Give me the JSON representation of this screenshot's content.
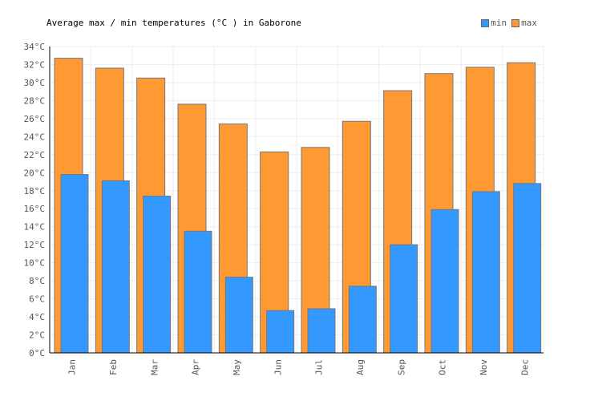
{
  "chart_data": {
    "type": "bar",
    "title": "Average max / min temperatures (°C ) in Gaborone",
    "categories": [
      "Jan",
      "Feb",
      "Mar",
      "Apr",
      "May",
      "Jun",
      "Jul",
      "Aug",
      "Sep",
      "Oct",
      "Nov",
      "Dec"
    ],
    "series": [
      {
        "name": "min",
        "color": "#3399ff",
        "values": [
          19.8,
          19.1,
          17.4,
          13.5,
          8.4,
          4.7,
          4.9,
          7.4,
          12.0,
          15.9,
          17.9,
          18.8
        ]
      },
      {
        "name": "max",
        "color": "#ff9933",
        "values": [
          32.7,
          31.6,
          30.5,
          27.6,
          25.4,
          22.3,
          22.8,
          25.7,
          29.1,
          31.0,
          31.7,
          32.2
        ]
      }
    ],
    "ylim": [
      0,
      34
    ],
    "ytick_step": 2,
    "yunit": "°C",
    "grid": true,
    "legend": "top-right"
  }
}
